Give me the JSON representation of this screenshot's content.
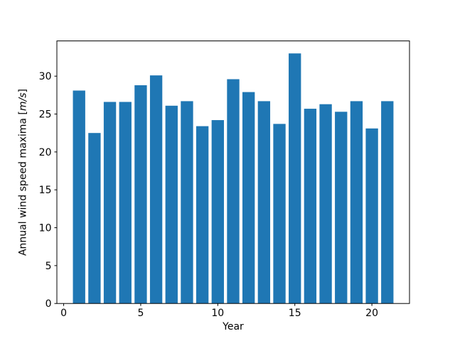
{
  "chart_data": {
    "type": "bar",
    "title": "",
    "xlabel": "Year",
    "ylabel": "Annual wind speed maxima [m/s]",
    "ylabel_parts": {
      "prefix": "Annual wind speed maxima [",
      "italic": "m/s",
      "suffix": "]"
    },
    "categories": [
      1,
      2,
      3,
      4,
      5,
      6,
      7,
      8,
      9,
      10,
      11,
      12,
      13,
      14,
      15,
      16,
      17,
      18,
      19,
      20,
      21
    ],
    "values": [
      28.1,
      22.5,
      26.6,
      26.6,
      28.8,
      30.1,
      26.1,
      26.7,
      23.4,
      24.2,
      29.6,
      27.9,
      26.7,
      23.7,
      33.0,
      25.7,
      26.3,
      25.3,
      26.7,
      23.1,
      26.7
    ],
    "bar_width": 0.8,
    "bar_color": "#1f77b4",
    "xlim": [
      -0.44,
      22.44
    ],
    "ylim": [
      0,
      34.65
    ],
    "xticks": [
      0,
      5,
      10,
      15,
      20
    ],
    "yticks": [
      0,
      5,
      10,
      15,
      20,
      25,
      30
    ],
    "grid": false,
    "legend": null,
    "background": "#ffffff",
    "spine_color": "#000000"
  }
}
